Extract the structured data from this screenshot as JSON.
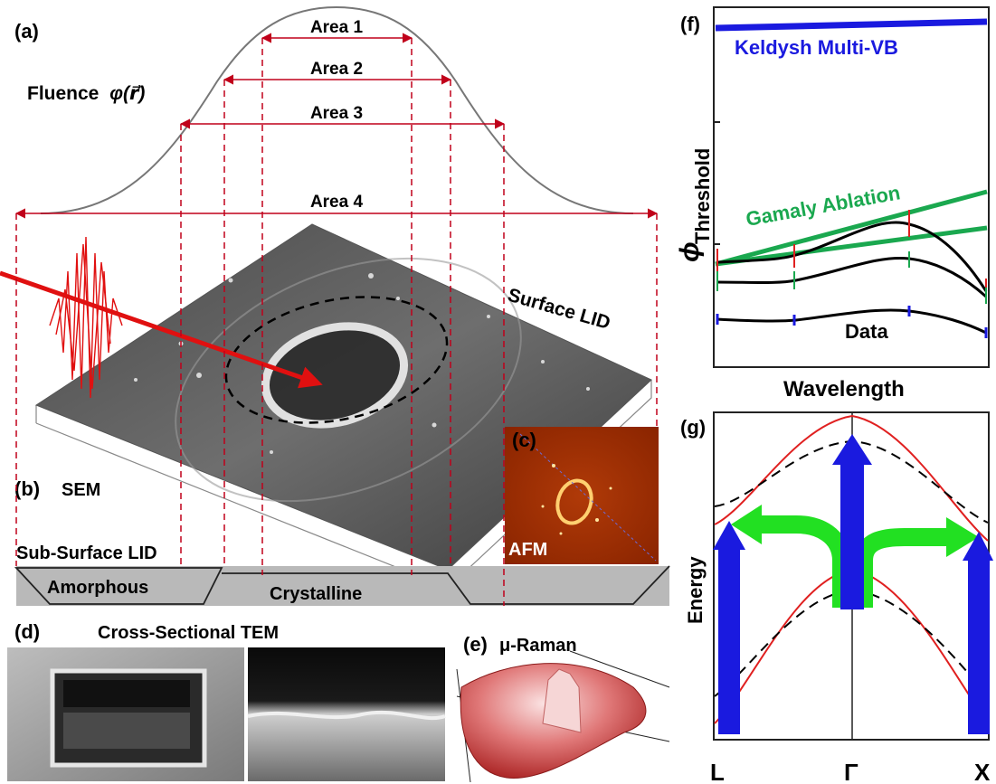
{
  "panel_a": {
    "letter": "(a)",
    "fluence_label": "Fluence",
    "fluence_symbol": "φ(r⃗)",
    "areas": [
      "Area 1",
      "Area 2",
      "Area 3",
      "Area 4"
    ]
  },
  "panel_b": {
    "letter": "(b)",
    "label": "SEM",
    "surface_lid": "Surface LID",
    "subsurface_lid": "Sub-Surface LID",
    "amorphous": "Amorphous",
    "crystalline": "Crystalline"
  },
  "panel_c": {
    "letter": "(c)",
    "label": "AFM"
  },
  "panel_d": {
    "letter": "(d)",
    "label": "Cross-Sectional TEM"
  },
  "panel_e": {
    "letter": "(e)",
    "label": "μ-Raman"
  },
  "panel_f": {
    "letter": "(f)",
    "keldysh": "Keldysh Multi-VB",
    "gamaly": "Gamaly Ablation",
    "data": "Data",
    "xlabel": "Wavelength",
    "ylabel_symbol": "ϕ",
    "ylabel_sub": "Threshold"
  },
  "panel_g": {
    "letter": "(g)",
    "ylabel": "Energy",
    "ticks": [
      "L",
      "Γ",
      "X"
    ]
  },
  "colors": {
    "dashed_red": "#c0001a",
    "keldysh_blue": "#1a1adf",
    "gamaly_green": "#1aa84f",
    "arrow_green": "#22e022",
    "afm_bg": "#9a2a00"
  }
}
